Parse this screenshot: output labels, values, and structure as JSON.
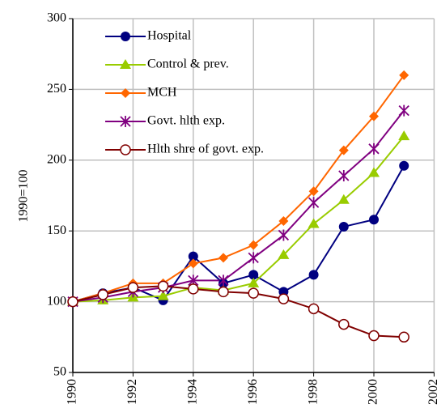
{
  "chart_data": {
    "type": "line",
    "ylabel": "1990=100",
    "x": [
      1990,
      1991,
      1992,
      1993,
      1994,
      1995,
      1996,
      1997,
      1998,
      1999,
      2000,
      2001
    ],
    "xlim": [
      1990,
      2002
    ],
    "xticks": [
      1990,
      1992,
      1994,
      1996,
      1998,
      2000,
      2002
    ],
    "ylim": [
      50,
      300
    ],
    "yticks": [
      50,
      100,
      150,
      200,
      250,
      300
    ],
    "grid": true,
    "legend": "upper left",
    "series": [
      {
        "name": "Hospital",
        "color": "#000080",
        "marker": "circle",
        "values": [
          100,
          106,
          110,
          101,
          132,
          113,
          119,
          107,
          119,
          153,
          158,
          196
        ]
      },
      {
        "name": "Control & prev.",
        "color": "#99cc00",
        "marker": "triangle",
        "values": [
          100,
          101,
          103,
          104,
          110,
          108,
          113,
          133,
          155,
          172,
          191,
          217
        ]
      },
      {
        "name": "MCH",
        "color": "#ff6600",
        "marker": "diamond",
        "values": [
          100,
          106,
          113,
          113,
          127,
          131,
          140,
          157,
          178,
          207,
          231,
          260
        ]
      },
      {
        "name": "Govt. hlth exp.",
        "color": "#800080",
        "marker": "asterisk",
        "values": [
          100,
          103,
          107,
          110,
          115,
          115,
          131,
          147,
          170,
          189,
          208,
          235
        ]
      },
      {
        "name": "Hlth shre of govt. exp.",
        "color": "#800000",
        "marker": "open-circle",
        "values": [
          100,
          105,
          110,
          111,
          109,
          107,
          106,
          102,
          95,
          84,
          76,
          75
        ]
      }
    ]
  }
}
